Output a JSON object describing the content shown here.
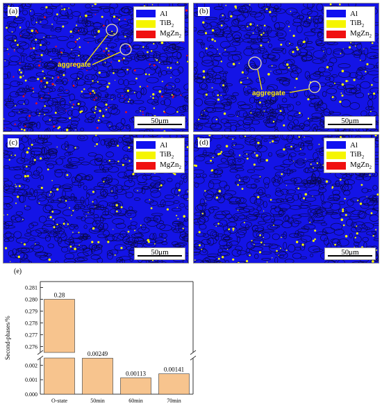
{
  "panels": [
    {
      "id": "a",
      "label": "(a)",
      "annotation": "aggregate",
      "density_red": 0.18,
      "density_yellow": 0.5
    },
    {
      "id": "b",
      "label": "(b)",
      "annotation": "aggregate",
      "density_red": 0.0,
      "density_yellow": 0.25
    },
    {
      "id": "c",
      "label": "(c)",
      "annotation": "",
      "density_red": 0.0,
      "density_yellow": 0.3
    },
    {
      "id": "d",
      "label": "(d)",
      "annotation": "",
      "density_red": 0.0,
      "density_yellow": 0.35
    }
  ],
  "legend": [
    {
      "name": "Al",
      "sub": "",
      "color": "#1010f0"
    },
    {
      "name": "TiB",
      "sub": "2",
      "color": "#f5f500"
    },
    {
      "name": "MgZn",
      "sub": "2",
      "color": "#f01010"
    }
  ],
  "scale_bar": "50μm",
  "chart_data": {
    "type": "bar",
    "panel_label": "(e)",
    "ylabel": "Second-phases/%",
    "categories": [
      "O-state",
      "50min",
      "60min",
      "70min"
    ],
    "values": [
      0.28,
      0.00249,
      0.00113,
      0.00141
    ],
    "value_labels": [
      "0.28",
      "0.00249",
      "0.00113",
      "0.00141"
    ],
    "broken_axis": true,
    "lower_ylim": [
      0.0,
      0.0025
    ],
    "lower_ticks": [
      "0.000",
      "0.001",
      "0.002"
    ],
    "upper_ylim": [
      0.2755,
      0.2815
    ],
    "upper_ticks": [
      "0.276",
      "0.277",
      "0.278",
      "0.279",
      "0.280",
      "0.281"
    ],
    "bar_color": "#f7c48e",
    "bar_edge": "#333333"
  }
}
